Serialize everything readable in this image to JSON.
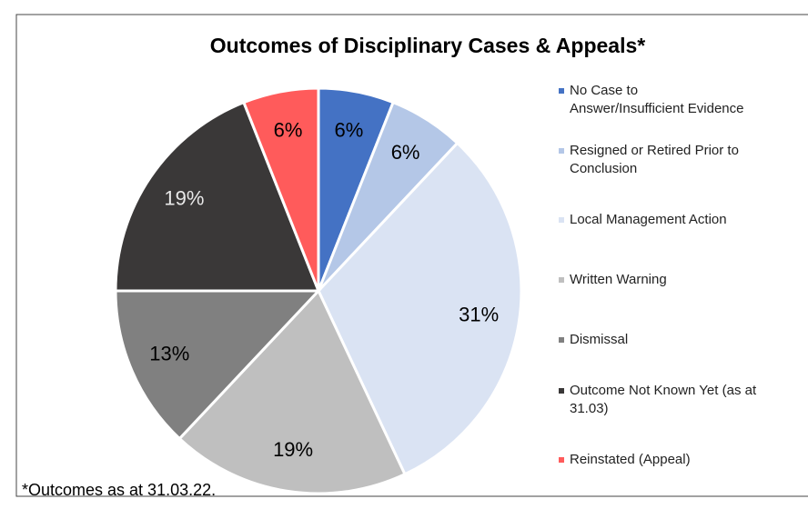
{
  "chart_data": {
    "type": "pie",
    "title": "Outcomes of Disciplinary Cases & Appeals*",
    "categories": [
      "No Case to Answer/Insufficient Evidence",
      "Resigned or Retired Prior to Conclusion",
      "Local Management Action",
      "Written Warning",
      "Dismissal",
      "Outcome Not Known Yet (as at 31.03)",
      "Reinstated (Appeal)"
    ],
    "values": [
      6,
      6,
      31,
      19,
      13,
      19,
      6
    ],
    "value_labels": [
      "6%",
      "6%",
      "31%",
      "19%",
      "13%",
      "19%",
      "6%"
    ],
    "colors": [
      "#4472c4",
      "#b4c7e7",
      "#dae3f3",
      "#bfbfbf",
      "#808080",
      "#3a3838",
      "#ff5b5b"
    ],
    "legend": "right",
    "footnote": "*Outcomes as at 31.03.22."
  }
}
